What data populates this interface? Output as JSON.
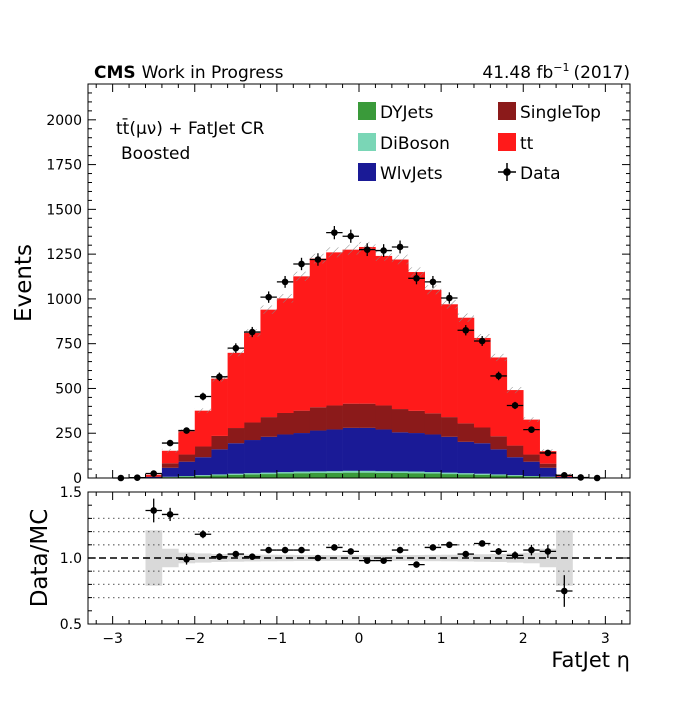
{
  "header": {
    "experiment": "CMS",
    "status": "Work in Progress",
    "lumi_text": "41.48 fb",
    "lumi_exp": "−1",
    "lumi_year": "(2017)"
  },
  "annotation": {
    "line1": "tt̄(μν) + FatJet CR",
    "line2": "Boosted"
  },
  "chart_data": [
    {
      "type": "bar",
      "stacked": true,
      "xlabel": "FatJet η",
      "ylabel": "Events",
      "xlim": [
        -3.3,
        3.3
      ],
      "ylim": [
        0,
        2200
      ],
      "xticks": [
        -3,
        -2,
        -1,
        0,
        1,
        2,
        3
      ],
      "xtick_labels": [
        "−3",
        "−2",
        "−1",
        "0",
        "1",
        "2",
        "3"
      ],
      "yticks": [
        0,
        250,
        500,
        750,
        1000,
        1250,
        1500,
        1750,
        2000
      ],
      "ytick_labels": [
        "0",
        "250",
        "500",
        "750",
        "1000",
        "1250",
        "1500",
        "1750",
        "2000"
      ],
      "legend_position": "top-right",
      "colors": {
        "DYJets": "#3a9a3a",
        "DiBoson": "#7ad6b6",
        "WlvJets": "#1a1a96",
        "SingleTop": "#8b1a1a",
        "tt": "#ff1a1a",
        "Data": "#000000"
      },
      "bin_edges": [
        -2.6,
        -2.4,
        -2.2,
        -2.0,
        -1.8,
        -1.6,
        -1.4,
        -1.2,
        -1.0,
        -0.8,
        -0.6,
        -0.4,
        -0.2,
        0.0,
        0.2,
        0.4,
        0.6,
        0.8,
        1.0,
        1.2,
        1.4,
        1.6,
        1.8,
        2.0,
        2.2,
        2.4,
        2.6
      ],
      "series": [
        {
          "name": "DYJets",
          "values": [
            1,
            5,
            8,
            12,
            15,
            18,
            20,
            22,
            25,
            27,
            28,
            29,
            30,
            30,
            29,
            28,
            27,
            25,
            22,
            20,
            18,
            15,
            12,
            8,
            5,
            1
          ]
        },
        {
          "name": "DiBoson",
          "values": [
            0,
            2,
            3,
            4,
            5,
            6,
            7,
            8,
            8,
            9,
            9,
            9,
            10,
            10,
            9,
            9,
            9,
            8,
            8,
            7,
            6,
            5,
            4,
            3,
            2,
            0
          ]
        },
        {
          "name": "WlvJets",
          "values": [
            5,
            50,
            80,
            100,
            140,
            170,
            185,
            200,
            210,
            215,
            228,
            233,
            240,
            240,
            233,
            218,
            215,
            210,
            200,
            175,
            170,
            140,
            100,
            80,
            50,
            5
          ]
        },
        {
          "name": "SingleTop",
          "values": [
            2,
            25,
            40,
            60,
            75,
            85,
            98,
            110,
            120,
            125,
            130,
            134,
            135,
            135,
            134,
            130,
            124,
            118,
            110,
            103,
            88,
            73,
            65,
            40,
            23,
            2
          ]
        },
        {
          "name": "tt",
          "values": [
            10,
            70,
            130,
            200,
            320,
            420,
            500,
            600,
            640,
            750,
            830,
            855,
            860,
            875,
            835,
            835,
            775,
            690,
            630,
            590,
            500,
            440,
            310,
            195,
            70,
            10
          ]
        }
      ],
      "data_series": {
        "name": "Data",
        "x": [
          -2.9,
          -2.7,
          -2.5,
          -2.3,
          -2.1,
          -1.9,
          -1.7,
          -1.5,
          -1.3,
          -1.1,
          -0.9,
          -0.7,
          -0.5,
          -0.3,
          -0.1,
          0.1,
          0.3,
          0.5,
          0.7,
          0.9,
          1.1,
          1.3,
          1.5,
          1.7,
          1.9,
          2.1,
          2.3,
          2.5,
          2.7,
          2.9
        ],
        "y": [
          0,
          2,
          25,
          195,
          265,
          455,
          565,
          725,
          815,
          1010,
          1095,
          1195,
          1220,
          1370,
          1350,
          1275,
          1270,
          1290,
          1115,
          1095,
          1005,
          825,
          765,
          570,
          405,
          270,
          140,
          15,
          3,
          0
        ]
      }
    },
    {
      "type": "scatter",
      "xlabel": "FatJet η",
      "ylabel": "Data/MC",
      "xlim": [
        -3.3,
        3.3
      ],
      "ylim": [
        0.5,
        1.5
      ],
      "yticks": [
        0.5,
        1.0,
        1.5
      ],
      "ytick_labels": [
        "0.5",
        "1.0",
        "1.5"
      ],
      "gridlines_y": [
        0.7,
        0.8,
        0.9,
        1.1,
        1.2,
        1.3
      ],
      "reference_line": 1.0,
      "uncertainty_band": {
        "bin_edges": [
          -2.6,
          -2.4,
          -2.2,
          -2.0,
          -1.8,
          -1.6,
          -1.4,
          -1.2,
          -1.0,
          -0.8,
          -0.6,
          -0.4,
          -0.2,
          0.0,
          0.2,
          0.4,
          0.6,
          0.8,
          1.0,
          1.2,
          1.4,
          1.6,
          1.8,
          2.0,
          2.2,
          2.4,
          2.6
        ],
        "half_width": [
          0.21,
          0.07,
          0.04,
          0.035,
          0.03,
          0.028,
          0.026,
          0.025,
          0.024,
          0.023,
          0.022,
          0.022,
          0.022,
          0.022,
          0.022,
          0.022,
          0.023,
          0.024,
          0.025,
          0.026,
          0.028,
          0.03,
          0.035,
          0.04,
          0.07,
          0.21
        ]
      },
      "points": {
        "x": [
          -2.5,
          -2.3,
          -2.1,
          -1.9,
          -1.7,
          -1.5,
          -1.3,
          -1.1,
          -0.9,
          -0.7,
          -0.5,
          -0.3,
          -0.1,
          0.1,
          0.3,
          0.5,
          0.7,
          0.9,
          1.1,
          1.3,
          1.5,
          1.7,
          1.9,
          2.1,
          2.3,
          2.5
        ],
        "y": [
          1.36,
          1.33,
          0.99,
          1.18,
          1.01,
          1.03,
          1.01,
          1.06,
          1.06,
          1.06,
          1.0,
          1.08,
          1.05,
          0.98,
          0.98,
          1.06,
          0.95,
          1.08,
          1.1,
          1.03,
          1.11,
          1.05,
          1.02,
          1.06,
          1.05,
          0.75
        ],
        "err": [
          0.09,
          0.05,
          0.04,
          0.03,
          0.025,
          0.02,
          0.018,
          0.016,
          0.015,
          0.014,
          0.014,
          0.013,
          0.013,
          0.013,
          0.013,
          0.013,
          0.014,
          0.015,
          0.016,
          0.018,
          0.02,
          0.025,
          0.03,
          0.04,
          0.05,
          0.12
        ]
      }
    }
  ]
}
